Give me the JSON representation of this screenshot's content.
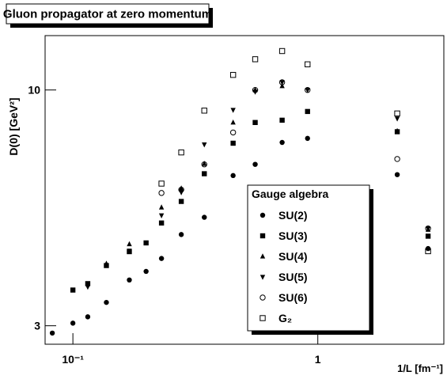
{
  "chart_data": {
    "type": "scatter",
    "title": "Gluon propagator at zero momentum",
    "x_label": "1/L [fm⁻¹]",
    "y_label": "D(0) [GeV²]",
    "xscale": "log",
    "yscale": "log",
    "xlim": [
      0.077,
      3.27
    ],
    "ylim": [
      2.73,
      13.2
    ],
    "xticks": [
      {
        "value": 0.1,
        "label": "10⁻¹"
      },
      1
    ],
    "yticks": [
      3,
      10
    ],
    "legend_title": "Gauge algebra",
    "series": [
      {
        "name": "SU(2)",
        "marker": "circle",
        "color": "#000000",
        "x": [
          0.0824,
          0.1,
          0.115,
          0.137,
          0.17,
          0.199,
          0.23,
          0.277,
          0.344,
          0.451,
          0.555,
          0.715,
          0.908,
          2.11,
          2.82
        ],
        "values": [
          2.89,
          3.04,
          3.14,
          3.38,
          3.79,
          3.96,
          4.23,
          4.78,
          5.22,
          6.46,
          6.84,
          7.65,
          7.81,
          6.49,
          4.45
        ]
      },
      {
        "name": "SU(3)",
        "marker": "square",
        "color": "#000000",
        "x": [
          0.1,
          0.115,
          0.137,
          0.17,
          0.199,
          0.23,
          0.277,
          0.344,
          0.451,
          0.555,
          0.715,
          0.908,
          2.11,
          2.82
        ],
        "values": [
          3.6,
          3.72,
          4.08,
          4.38,
          4.58,
          5.07,
          5.66,
          6.52,
          7.62,
          8.47,
          8.57,
          8.96,
          8.08,
          4.74
        ]
      },
      {
        "name": "SU(4)",
        "marker": "triangle",
        "color": "#000000",
        "x": [
          0.137,
          0.17,
          0.23,
          0.277,
          0.344,
          0.451,
          0.555,
          0.715,
          2.11,
          2.82
        ],
        "values": [
          4.12,
          4.55,
          5.49,
          6.05,
          6.86,
          8.47,
          10.0,
          10.2,
          8.11,
          4.9
        ]
      },
      {
        "name": "SU(5)",
        "marker": "triangle-down",
        "color": "#000000",
        "x": [
          0.115,
          0.17,
          0.23,
          0.277,
          0.344,
          0.451,
          0.555,
          0.715,
          0.908,
          2.11,
          2.82
        ],
        "values": [
          3.66,
          4.4,
          5.27,
          5.93,
          7.57,
          9.03,
          9.91,
          10.4,
          10.0,
          8.64,
          4.93
        ]
      },
      {
        "name": "SU(6)",
        "marker": "circle-open",
        "color": "#000000",
        "x": [
          0.23,
          0.277,
          0.344,
          0.451,
          0.555,
          0.715,
          0.908,
          2.11,
          2.82
        ],
        "values": [
          5.91,
          6.01,
          6.84,
          8.05,
          10.0,
          10.4,
          10.0,
          7.03,
          4.93
        ]
      },
      {
        "name": "G₂",
        "marker": "square-open",
        "color": "#000000",
        "x": [
          0.23,
          0.277,
          0.344,
          0.451,
          0.555,
          0.715,
          0.908,
          2.11,
          2.82
        ],
        "values": [
          6.2,
          7.27,
          9.0,
          10.8,
          11.7,
          12.2,
          11.4,
          8.87,
          4.39
        ]
      }
    ]
  }
}
